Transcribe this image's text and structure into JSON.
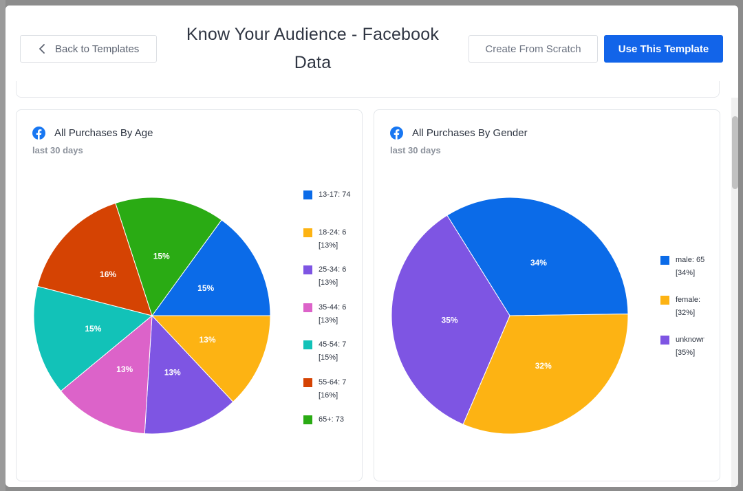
{
  "header": {
    "back_label": "Back to Templates",
    "title": "Know Your Audience - Facebook Data",
    "scratch_label": "Create From Scratch",
    "use_label": "Use This Template"
  },
  "cards": {
    "age": {
      "title": "All Purchases By Age",
      "subtitle": "last 30 days",
      "legend": [
        {
          "line1": "13-17: 74",
          "line2": ""
        },
        {
          "line1": "18-24: 6",
          "line2": "[13%]"
        },
        {
          "line1": "25-34: 6",
          "line2": "[13%]"
        },
        {
          "line1": "35-44: 6",
          "line2": "[13%]"
        },
        {
          "line1": "45-54: 7",
          "line2": "[15%]"
        },
        {
          "line1": "55-64: 7",
          "line2": "[16%]"
        },
        {
          "line1": "65+: 73",
          "line2": ""
        }
      ]
    },
    "gender": {
      "title": "All Purchases By Gender",
      "subtitle": "last 30 days",
      "legend": [
        {
          "line1": "male: 65",
          "line2": "[34%]"
        },
        {
          "line1": "female:",
          "line2": "[32%]"
        },
        {
          "line1": "unknown",
          "line2": "[35%]"
        }
      ]
    }
  },
  "chart_data": [
    {
      "type": "pie",
      "title": "All Purchases By Age",
      "subtitle": "last 30 days",
      "categories": [
        "13-17",
        "18-24",
        "25-34",
        "35-44",
        "45-54",
        "55-64",
        "65+"
      ],
      "values": [
        15,
        13,
        13,
        13,
        15,
        16,
        15
      ],
      "slice_labels": [
        "15%",
        "13%",
        "13%",
        "13%",
        "15%",
        "16%",
        "15%"
      ],
      "colors": [
        "#0b6be8",
        "#fdb313",
        "#7e55e3",
        "#dc63c9",
        "#12c2b8",
        "#d54303",
        "#2aab14"
      ],
      "legend_position": "right"
    },
    {
      "type": "pie",
      "title": "All Purchases By Gender",
      "subtitle": "last 30 days",
      "categories": [
        "male",
        "female",
        "unknown"
      ],
      "values": [
        34,
        32,
        35
      ],
      "slice_labels": [
        "34%",
        "32%",
        "35%"
      ],
      "colors": [
        "#0b6be8",
        "#fdb313",
        "#7e55e3"
      ],
      "legend_position": "right"
    }
  ]
}
